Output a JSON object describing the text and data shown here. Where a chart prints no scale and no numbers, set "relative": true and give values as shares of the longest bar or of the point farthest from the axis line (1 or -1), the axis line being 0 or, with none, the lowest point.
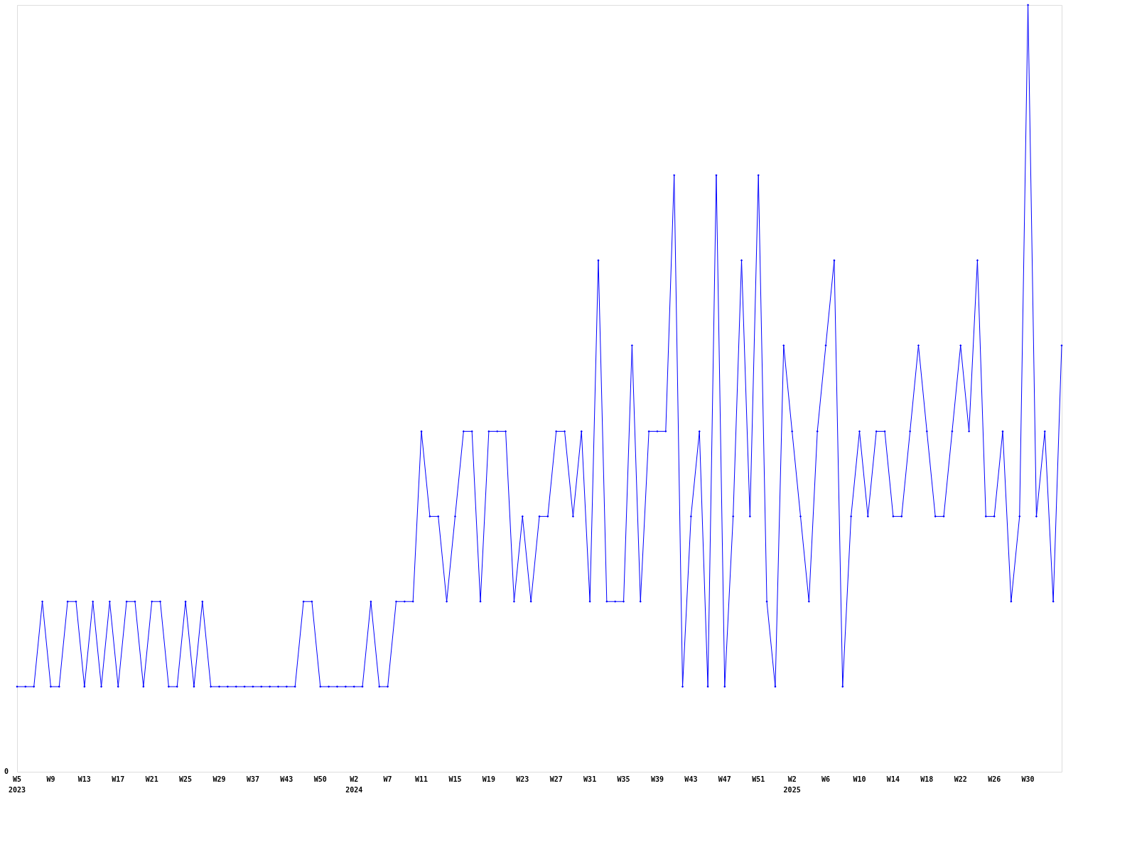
{
  "chart_data": {
    "type": "line",
    "relative": true,
    "categories": [
      "W5\n2023",
      null,
      null,
      null,
      "W9",
      null,
      null,
      null,
      "W13",
      null,
      null,
      null,
      "W17",
      null,
      null,
      null,
      "W21",
      null,
      null,
      null,
      "W25",
      null,
      null,
      null,
      "W29",
      null,
      null,
      null,
      "W37",
      null,
      null,
      null,
      "W43",
      null,
      null,
      null,
      "W50",
      null,
      null,
      null,
      "W2\n2024",
      null,
      null,
      null,
      "W7",
      null,
      null,
      null,
      "W11",
      null,
      null,
      null,
      "W15",
      null,
      null,
      null,
      "W19",
      null,
      null,
      null,
      "W23",
      null,
      null,
      null,
      "W27",
      null,
      null,
      null,
      "W31",
      null,
      null,
      null,
      "W35",
      null,
      null,
      null,
      "W39",
      null,
      null,
      null,
      "W43",
      null,
      null,
      null,
      "W47",
      null,
      null,
      null,
      "W51",
      null,
      null,
      null,
      "W2\n2025",
      null,
      null,
      null,
      "W6",
      null,
      null,
      null,
      "W10",
      null,
      null,
      null,
      "W14",
      null,
      null,
      null,
      "W18",
      null,
      null,
      null,
      "W22",
      null,
      null,
      null,
      "W26",
      null,
      null,
      null,
      "W30",
      null,
      null,
      null,
      null
    ],
    "series": [
      {
        "color": "#0000ff",
        "values": [
          0.111,
          0.111,
          0.111,
          0.222,
          0.111,
          0.111,
          0.222,
          0.222,
          0.111,
          0.222,
          0.111,
          0.222,
          0.111,
          0.222,
          0.222,
          0.111,
          0.222,
          0.222,
          0.111,
          0.111,
          0.222,
          0.111,
          0.222,
          0.111,
          0.111,
          0.111,
          0.111,
          0.111,
          0.111,
          0.111,
          0.111,
          0.111,
          0.111,
          0.111,
          0.222,
          0.222,
          0.111,
          0.111,
          0.111,
          0.111,
          0.111,
          0.111,
          0.222,
          0.111,
          0.111,
          0.222,
          0.222,
          0.222,
          0.444,
          0.333,
          0.333,
          0.222,
          0.333,
          0.444,
          0.444,
          0.222,
          0.444,
          0.444,
          0.444,
          0.222,
          0.333,
          0.222,
          0.333,
          0.333,
          0.444,
          0.444,
          0.333,
          0.444,
          0.222,
          0.667,
          0.222,
          0.222,
          0.222,
          0.556,
          0.222,
          0.444,
          0.444,
          0.444,
          0.778,
          0.111,
          0.333,
          0.444,
          0.111,
          0.778,
          0.111,
          0.333,
          0.667,
          0.333,
          0.778,
          0.222,
          0.111,
          0.556,
          0.444,
          0.333,
          0.222,
          0.444,
          0.556,
          0.667,
          0.111,
          0.333,
          0.444,
          0.333,
          0.444,
          0.444,
          0.333,
          0.333,
          0.444,
          0.556,
          0.444,
          0.333,
          0.333,
          0.444,
          0.556,
          0.444,
          0.667,
          0.333,
          0.333,
          0.444,
          0.222,
          0.333,
          1,
          0.333,
          0.444,
          0.222,
          0.556
        ]
      }
    ],
    "annotations": [
      "0"
    ],
    "marker": "diamond",
    "line_style": "solid"
  }
}
